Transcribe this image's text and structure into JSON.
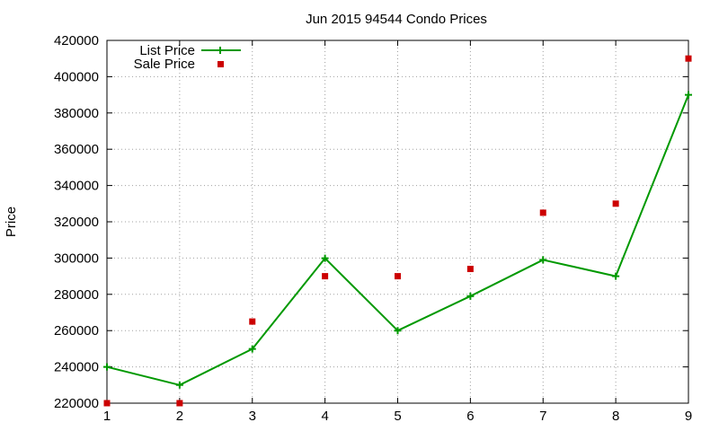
{
  "chart_data": {
    "type": "line",
    "title": "Jun 2015 94544 Condo Prices",
    "xlabel": "",
    "ylabel": "Price",
    "x": [
      1,
      2,
      3,
      4,
      5,
      6,
      7,
      8,
      9
    ],
    "xlim": [
      1,
      9
    ],
    "ylim": [
      220000,
      420000
    ],
    "xticks": [
      1,
      2,
      3,
      4,
      5,
      6,
      7,
      8,
      9
    ],
    "yticks": [
      220000,
      240000,
      260000,
      280000,
      300000,
      320000,
      340000,
      360000,
      380000,
      400000,
      420000
    ],
    "grid": true,
    "legend_position": "top-left",
    "series": [
      {
        "name": "List Price",
        "style": "line+plus",
        "color": "#009900",
        "values": [
          240000,
          230000,
          249900,
          299900,
          260000,
          279000,
          299000,
          290000,
          390000
        ]
      },
      {
        "name": "Sale Price",
        "style": "square",
        "color": "#cc0000",
        "values": [
          220000,
          220000,
          265000,
          290000,
          290000,
          294000,
          325000,
          330000,
          410000
        ]
      }
    ]
  }
}
